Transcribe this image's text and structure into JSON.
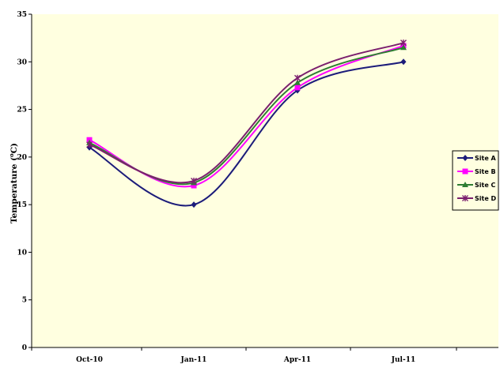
{
  "chart_data": {
    "type": "line",
    "categories": [
      "Oct-10",
      "Jan-11",
      "Apr-11",
      "Jul-11"
    ],
    "ylabel_main": "Temperature (",
    "ylabel_sup": "o",
    "ylabel_end": "C)",
    "ylim": [
      0,
      35
    ],
    "yticks": [
      "0",
      "5",
      "10",
      "15",
      "20",
      "25",
      "30",
      "35"
    ],
    "legend_position": "right",
    "background": "#ffffe0",
    "series": [
      {
        "name": "Site A",
        "values": [
          21.0,
          15.0,
          27.0,
          30.0
        ],
        "color": "#1c1c7a",
        "marker": "diamond"
      },
      {
        "name": "Site B",
        "values": [
          21.8,
          17.0,
          27.3,
          31.7
        ],
        "color": "#ff00ff",
        "marker": "square"
      },
      {
        "name": "Site C",
        "values": [
          21.5,
          17.3,
          27.8,
          31.5
        ],
        "color": "#2e7d32",
        "marker": "triangle"
      },
      {
        "name": "Site D",
        "values": [
          21.3,
          17.5,
          28.3,
          32.0
        ],
        "color": "#7b1f6e",
        "marker": "x"
      }
    ]
  }
}
